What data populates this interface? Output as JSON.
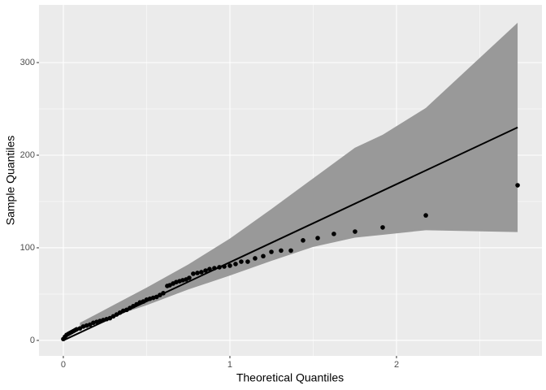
{
  "chart_data": {
    "type": "qq",
    "x_label": "Theoretical Quantiles",
    "y_label": "Sample Quantiles",
    "xlim": [
      -0.146,
      2.873
    ],
    "ylim": [
      -16.7,
      362.3
    ],
    "xticks": [
      0,
      1,
      2
    ],
    "yticks": [
      0,
      100,
      200,
      300
    ],
    "x_minor_ticks": [
      0.5,
      1.5,
      2.5
    ],
    "y_minor_ticks": [
      50,
      150,
      250
    ],
    "grid": true,
    "panel_color": "#ebebeb",
    "point_color": "#000000",
    "line_color": "#000000",
    "band_color": "#999999",
    "points": {
      "x": [
        0,
        0.01,
        0.02,
        0.03,
        0.04,
        0.05,
        0.06,
        0.07,
        0.08,
        0.1,
        0.12,
        0.14,
        0.16,
        0.18,
        0.2,
        0.22,
        0.24,
        0.26,
        0.28,
        0.3,
        0.32,
        0.34,
        0.36,
        0.38,
        0.4,
        0.42,
        0.44,
        0.46,
        0.48,
        0.5,
        0.52,
        0.54,
        0.56,
        0.58,
        0.6,
        0.624,
        0.639,
        0.659,
        0.678,
        0.698,
        0.717,
        0.737,
        0.756,
        0.78,
        0.805,
        0.829,
        0.854,
        0.878,
        0.907,
        0.937,
        0.966,
        1.0,
        1.034,
        1.068,
        1.107,
        1.151,
        1.2,
        1.249,
        1.307,
        1.366,
        1.439,
        1.527,
        1.624,
        1.751,
        1.917,
        2.176,
        2.727
      ],
      "y": [
        1.5,
        4,
        6,
        7,
        8,
        9,
        10,
        11,
        12,
        13,
        15,
        16,
        17,
        19,
        20,
        21,
        22,
        23,
        24,
        26,
        28,
        30,
        32,
        33,
        35,
        37,
        39,
        41,
        42,
        44,
        45,
        46,
        47,
        49,
        51,
        58.8,
        59.6,
        61.4,
        63,
        64,
        65,
        65.8,
        67.5,
        72,
        72.8,
        73.7,
        75.4,
        77,
        78,
        79,
        79.8,
        80.7,
        82.5,
        85,
        85,
        88.6,
        91,
        95.6,
        97,
        97,
        108,
        110.5,
        115,
        117.5,
        122,
        135,
        167.5
      ]
    },
    "reference_line": {
      "x": [
        0,
        2.727
      ],
      "y": [
        0,
        230
      ]
    },
    "confidence_band": {
      "x": [
        0.1,
        0.3,
        0.5,
        0.75,
        1.0,
        1.25,
        1.5,
        1.75,
        1.917,
        2.176,
        2.727
      ],
      "upper": [
        19,
        38,
        57,
        82,
        110,
        142,
        175,
        208,
        222,
        251,
        343
      ],
      "lower": [
        12,
        26,
        38,
        55,
        70,
        86,
        101,
        111,
        114,
        119,
        117
      ]
    }
  }
}
